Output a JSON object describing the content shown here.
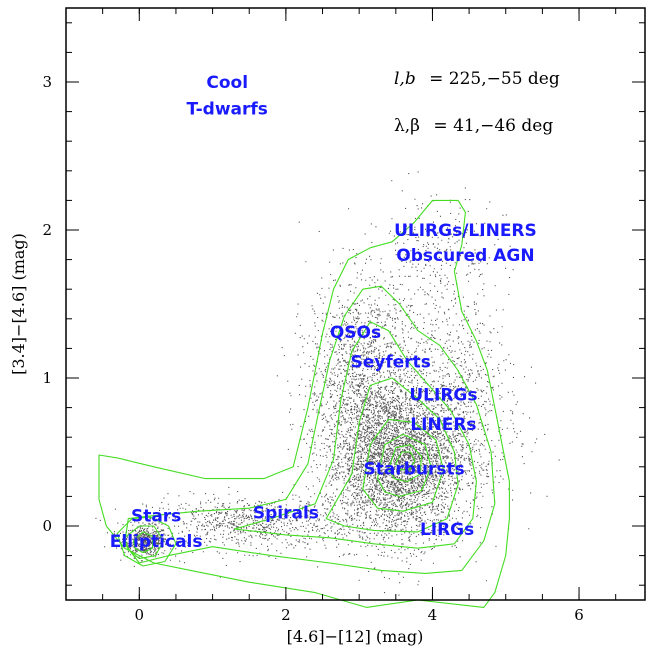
{
  "chart_data": {
    "type": "scatter",
    "title": "",
    "xlabel": "[4.6]−[12] (mag)",
    "ylabel": "[3.4]−[4.6] (mag)",
    "xlim": [
      -1.0,
      6.9
    ],
    "ylim": [
      -0.5,
      3.5
    ],
    "x_major_ticks": [
      0,
      2,
      4,
      6
    ],
    "x_tick_labels": [
      "0",
      "2",
      "4",
      "6"
    ],
    "y_major_ticks": [
      0,
      1,
      2,
      3
    ],
    "y_tick_labels": [
      "0",
      "1",
      "2",
      "3"
    ],
    "grid": false,
    "coordinates": [
      {
        "lead": "l,b",
        "value": "= 225,−55 deg"
      },
      {
        "lead": "λ,β",
        "value": "= 41,−46 deg"
      }
    ],
    "region_labels": [
      {
        "text": "Cool",
        "x": 1.2,
        "y": 3.0
      },
      {
        "text": "T-dwarfs",
        "x": 1.2,
        "y": 2.82
      },
      {
        "text": "ULIRGs/LINERS",
        "x": 4.45,
        "y": 2.0
      },
      {
        "text": "Obscured AGN",
        "x": 4.45,
        "y": 1.83
      },
      {
        "text": "QSOs",
        "x": 2.95,
        "y": 1.31
      },
      {
        "text": "Seyferts",
        "x": 3.43,
        "y": 1.11
      },
      {
        "text": "ULIRGs",
        "x": 4.15,
        "y": 0.89
      },
      {
        "text": "LINERs",
        "x": 4.15,
        "y": 0.69
      },
      {
        "text": "Starbursts",
        "x": 3.75,
        "y": 0.39
      },
      {
        "text": "Spirals",
        "x": 2.0,
        "y": 0.09
      },
      {
        "text": "Stars",
        "x": 0.23,
        "y": 0.07
      },
      {
        "text": "Ellipticals",
        "x": 0.23,
        "y": -0.1
      },
      {
        "text": "LIRGs",
        "x": 4.2,
        "y": -0.02
      }
    ],
    "scatter_clusters": [
      {
        "name": "stars",
        "cx": 0.08,
        "cy": -0.1,
        "sx": 0.15,
        "sy": 0.05,
        "n": 500
      },
      {
        "name": "spirals",
        "cx": 1.5,
        "cy": 0.02,
        "sx": 0.7,
        "sy": 0.09,
        "n": 800
      },
      {
        "name": "starbursts",
        "cx": 3.5,
        "cy": 0.45,
        "sx": 0.48,
        "sy": 0.27,
        "n": 4200
      },
      {
        "name": "qsos-seyferts",
        "cx": 3.0,
        "cy": 1.1,
        "sx": 0.35,
        "sy": 0.3,
        "n": 1100
      },
      {
        "name": "ulirgs",
        "cx": 4.2,
        "cy": 1.2,
        "sx": 0.4,
        "sy": 0.45,
        "n": 450
      },
      {
        "name": "obscured-agn",
        "cx": 4.0,
        "cy": 1.9,
        "sx": 0.4,
        "sy": 0.2,
        "n": 160
      },
      {
        "name": "liners",
        "cx": 4.4,
        "cy": 0.75,
        "sx": 0.4,
        "sy": 0.3,
        "n": 350
      }
    ],
    "contours": [
      {
        "level": 1,
        "points": [
          [
            -0.55,
            0.3
          ],
          [
            -0.55,
            0.48
          ],
          [
            -0.3,
            0.46
          ],
          [
            0.2,
            0.4
          ],
          [
            0.9,
            0.32
          ],
          [
            1.7,
            0.32
          ],
          [
            2.1,
            0.4
          ],
          [
            2.3,
            0.8
          ],
          [
            2.5,
            1.3
          ],
          [
            2.65,
            1.6
          ],
          [
            2.85,
            1.8
          ],
          [
            3.15,
            1.88
          ],
          [
            3.45,
            1.92
          ],
          [
            3.75,
            2.05
          ],
          [
            4.0,
            2.2
          ],
          [
            4.35,
            2.2
          ],
          [
            4.45,
            2.12
          ],
          [
            4.4,
            1.9
          ],
          [
            4.3,
            1.72
          ],
          [
            4.4,
            1.45
          ],
          [
            4.6,
            1.25
          ],
          [
            4.75,
            1.05
          ],
          [
            4.85,
            0.8
          ],
          [
            4.95,
            0.55
          ],
          [
            5.05,
            0.3
          ],
          [
            5.05,
            0.05
          ],
          [
            5.0,
            -0.2
          ],
          [
            4.85,
            -0.45
          ],
          [
            4.7,
            -0.55
          ],
          [
            3.8,
            -0.5
          ],
          [
            3.1,
            -0.55
          ],
          [
            2.4,
            -0.45
          ],
          [
            1.5,
            -0.38
          ],
          [
            0.7,
            -0.3
          ],
          [
            0.2,
            -0.25
          ],
          [
            -0.2,
            -0.15
          ],
          [
            -0.45,
            0.0
          ],
          [
            -0.55,
            0.18
          ]
        ]
      },
      {
        "level": 2,
        "points": [
          [
            -0.15,
            0.05
          ],
          [
            0.2,
            0.07
          ],
          [
            0.8,
            0.1
          ],
          [
            1.5,
            0.12
          ],
          [
            2.0,
            0.18
          ],
          [
            2.3,
            0.42
          ],
          [
            2.45,
            0.78
          ],
          [
            2.6,
            1.12
          ],
          [
            2.8,
            1.42
          ],
          [
            3.05,
            1.6
          ],
          [
            3.3,
            1.62
          ],
          [
            3.55,
            1.5
          ],
          [
            3.8,
            1.32
          ],
          [
            4.1,
            1.22
          ],
          [
            4.35,
            1.05
          ],
          [
            4.6,
            0.82
          ],
          [
            4.8,
            0.5
          ],
          [
            4.85,
            0.15
          ],
          [
            4.7,
            -0.1
          ],
          [
            4.4,
            -0.3
          ],
          [
            3.9,
            -0.32
          ],
          [
            3.3,
            -0.3
          ],
          [
            2.6,
            -0.25
          ],
          [
            1.8,
            -0.2
          ],
          [
            1.0,
            -0.14
          ],
          [
            0.4,
            -0.2
          ],
          [
            0.0,
            -0.25
          ],
          [
            -0.2,
            -0.12
          ]
        ]
      },
      {
        "level": 3,
        "points": [
          [
            1.3,
            -0.02
          ],
          [
            1.8,
            0.05
          ],
          [
            2.4,
            0.15
          ],
          [
            2.65,
            0.45
          ],
          [
            2.75,
            0.85
          ],
          [
            2.9,
            1.18
          ],
          [
            3.15,
            1.38
          ],
          [
            3.4,
            1.32
          ],
          [
            3.65,
            1.12
          ],
          [
            3.95,
            0.95
          ],
          [
            4.25,
            0.78
          ],
          [
            4.5,
            0.55
          ],
          [
            4.6,
            0.3
          ],
          [
            4.55,
            0.05
          ],
          [
            4.3,
            -0.12
          ],
          [
            3.8,
            -0.15
          ],
          [
            3.2,
            -0.12
          ],
          [
            2.6,
            -0.08
          ],
          [
            2.0,
            -0.06
          ]
        ]
      },
      {
        "level": 4,
        "points": [
          [
            2.55,
            0.05
          ],
          [
            2.9,
            0.35
          ],
          [
            3.0,
            0.7
          ],
          [
            3.15,
            0.95
          ],
          [
            3.45,
            1.0
          ],
          [
            3.8,
            0.86
          ],
          [
            4.1,
            0.72
          ],
          [
            4.3,
            0.5
          ],
          [
            4.35,
            0.28
          ],
          [
            4.2,
            0.05
          ],
          [
            3.8,
            -0.04
          ],
          [
            3.2,
            -0.03
          ],
          [
            2.8,
            -0.0
          ]
        ]
      },
      {
        "level": 5,
        "points": [
          [
            3.05,
            0.25
          ],
          [
            3.15,
            0.55
          ],
          [
            3.4,
            0.72
          ],
          [
            3.75,
            0.7
          ],
          [
            4.05,
            0.58
          ],
          [
            4.15,
            0.38
          ],
          [
            4.0,
            0.16
          ],
          [
            3.6,
            0.1
          ],
          [
            3.25,
            0.12
          ]
        ]
      },
      {
        "level": 6,
        "points": [
          [
            3.25,
            0.32
          ],
          [
            3.35,
            0.55
          ],
          [
            3.6,
            0.62
          ],
          [
            3.9,
            0.55
          ],
          [
            3.98,
            0.4
          ],
          [
            3.85,
            0.24
          ],
          [
            3.55,
            0.2
          ],
          [
            3.35,
            0.23
          ]
        ]
      },
      {
        "level": 7,
        "points": [
          [
            3.4,
            0.38
          ],
          [
            3.5,
            0.53
          ],
          [
            3.7,
            0.55
          ],
          [
            3.85,
            0.47
          ],
          [
            3.83,
            0.35
          ],
          [
            3.65,
            0.3
          ],
          [
            3.48,
            0.32
          ]
        ]
      },
      {
        "level": 8,
        "points": [
          [
            3.5,
            0.42
          ],
          [
            3.58,
            0.5
          ],
          [
            3.7,
            0.5
          ],
          [
            3.76,
            0.44
          ],
          [
            3.68,
            0.38
          ],
          [
            3.56,
            0.38
          ]
        ]
      },
      {
        "level": 9,
        "points": [
          [
            -0.3,
            -0.05
          ],
          [
            -0.1,
            0.05
          ],
          [
            0.15,
            0.06
          ],
          [
            0.4,
            0.0
          ],
          [
            0.5,
            -0.12
          ],
          [
            0.35,
            -0.24
          ],
          [
            0.05,
            -0.27
          ],
          [
            -0.2,
            -0.2
          ]
        ]
      },
      {
        "level": 10,
        "points": [
          [
            -0.2,
            -0.08
          ],
          [
            0.0,
            0.0
          ],
          [
            0.2,
            0.0
          ],
          [
            0.33,
            -0.1
          ],
          [
            0.22,
            -0.2
          ],
          [
            0.0,
            -0.22
          ],
          [
            -0.15,
            -0.16
          ]
        ]
      },
      {
        "level": 11,
        "points": [
          [
            -0.08,
            -0.1
          ],
          [
            0.05,
            -0.04
          ],
          [
            0.18,
            -0.07
          ],
          [
            0.18,
            -0.15
          ],
          [
            0.05,
            -0.18
          ],
          [
            -0.06,
            -0.15
          ]
        ]
      }
    ],
    "colors": {
      "points": "#555555",
      "contour": "#44dd22",
      "label": "#1a1aff",
      "axis": "#000000"
    }
  }
}
